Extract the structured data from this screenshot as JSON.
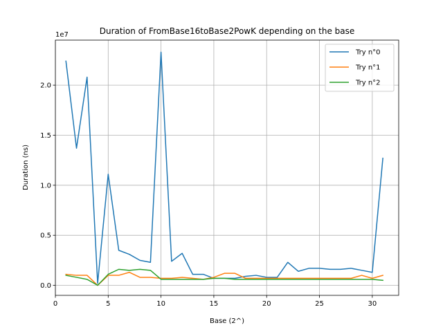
{
  "chart_data": {
    "type": "line",
    "title": "Duration of FromBase16toBase2PowK depending on the base",
    "xlabel": "Base (2^)",
    "ylabel": "Duration (ns)",
    "y_offset_label": "1e7",
    "xlim": [
      0,
      32.5
    ],
    "ylim": [
      -0.1,
      2.45
    ],
    "x_ticks": [
      0,
      5,
      10,
      15,
      20,
      25,
      30
    ],
    "y_ticks": [
      0.0,
      0.5,
      1.0,
      1.5,
      2.0
    ],
    "y_tick_labels": [
      "0.0",
      "0.5",
      "1.0",
      "1.5",
      "2.0"
    ],
    "grid": true,
    "legend_position": "top-right",
    "x": [
      1,
      2,
      3,
      4,
      5,
      6,
      7,
      8,
      9,
      10,
      11,
      12,
      13,
      14,
      15,
      16,
      17,
      18,
      19,
      20,
      21,
      22,
      23,
      24,
      25,
      26,
      27,
      28,
      29,
      30,
      31
    ],
    "series": [
      {
        "name": "Try n°0",
        "color": "#1f77b4",
        "values": [
          2.24,
          1.37,
          2.08,
          0.02,
          1.11,
          0.35,
          0.31,
          0.25,
          0.23,
          2.33,
          0.24,
          0.32,
          0.11,
          0.11,
          0.07,
          0.07,
          0.07,
          0.09,
          0.1,
          0.08,
          0.08,
          0.23,
          0.14,
          0.17,
          0.17,
          0.16,
          0.16,
          0.17,
          0.15,
          0.13,
          1.27
        ]
      },
      {
        "name": "Try n°1",
        "color": "#ff7f0e",
        "values": [
          0.11,
          0.1,
          0.1,
          0.0,
          0.1,
          0.1,
          0.13,
          0.08,
          0.08,
          0.07,
          0.07,
          0.08,
          0.07,
          0.06,
          0.08,
          0.12,
          0.12,
          0.07,
          0.07,
          0.07,
          0.07,
          0.07,
          0.07,
          0.07,
          0.07,
          0.07,
          0.07,
          0.07,
          0.1,
          0.07,
          0.1
        ]
      },
      {
        "name": "Try n°2",
        "color": "#2ca02c",
        "values": [
          0.1,
          0.08,
          0.06,
          0.0,
          0.11,
          0.16,
          0.15,
          0.16,
          0.15,
          0.06,
          0.06,
          0.06,
          0.06,
          0.06,
          0.07,
          0.07,
          0.06,
          0.06,
          0.06,
          0.06,
          0.06,
          0.06,
          0.06,
          0.06,
          0.06,
          0.06,
          0.06,
          0.06,
          0.06,
          0.06,
          0.05
        ]
      }
    ]
  }
}
